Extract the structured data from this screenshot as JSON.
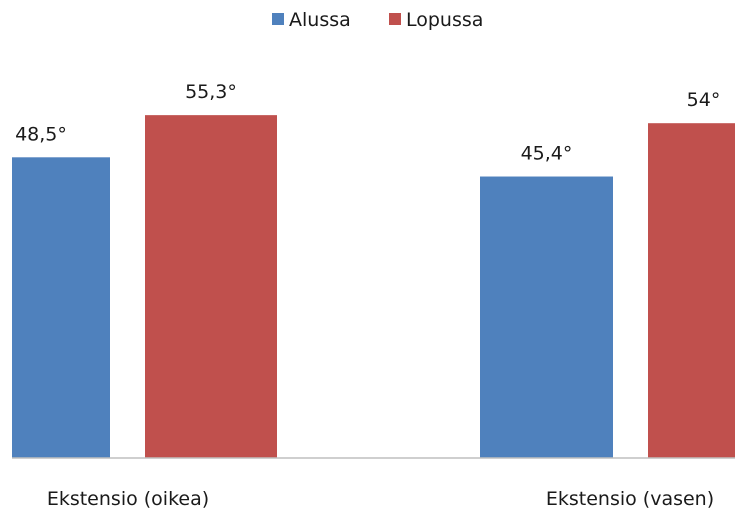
{
  "chart_data": {
    "type": "bar",
    "categories": [
      "Ekstensio (oikea)",
      "Ekstensio (vasen)"
    ],
    "series": [
      {
        "name": "Alussa",
        "values": [
          48.5,
          45.4
        ],
        "labels": [
          "48,5°",
          "45,4°"
        ],
        "color": "#4f81bd"
      },
      {
        "name": "Lopussa",
        "values": [
          55.3,
          54.0
        ],
        "labels": [
          "55,3°",
          "54°"
        ],
        "color": "#c0504d"
      }
    ],
    "legend": "top-center",
    "grid": false,
    "axis_line_color": "#bfbfbf"
  }
}
